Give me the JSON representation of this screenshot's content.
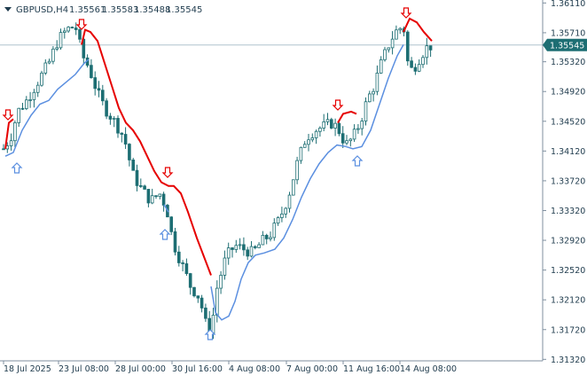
{
  "header": {
    "symbol": "GBPUSD,H4",
    "open": "1.35561",
    "high": "1.35583",
    "low": "1.35488",
    "close": "1.35545"
  },
  "colors": {
    "background": "#ffffff",
    "grid": "#e6ecf0",
    "axis": "#7f8f9f",
    "text": "#1f3b4d",
    "candle": "#1d6e73",
    "upper_band": "#e60000",
    "lower_band": "#5b8fe0",
    "price_tag_bg": "#1d6e73",
    "price_tag_text": "#ffffff",
    "current_line": "#b0c4ce"
  },
  "chart_data": {
    "type": "candlestick",
    "ylim": [
      1.313,
      1.3615
    ],
    "y_ticks": [
      "1.36110",
      "1.35710",
      "1.35320",
      "1.34920",
      "1.34520",
      "1.34120",
      "1.33720",
      "1.33320",
      "1.32920",
      "1.32520",
      "1.32120",
      "1.31720",
      "1.31320"
    ],
    "x_ticks": [
      "18 Jul 2025",
      "23 Jul 08:00",
      "28 Jul 00:00",
      "30 Jul 16:00",
      "4 Aug 08:00",
      "7 Aug 00:00",
      "11 Aug 16:00",
      "14 Aug 08:00"
    ],
    "current_price": "1.35545",
    "grid": false,
    "up_arrow_icon": "up-arrow-icon",
    "down_arrow_icon": "down-arrow-icon"
  }
}
